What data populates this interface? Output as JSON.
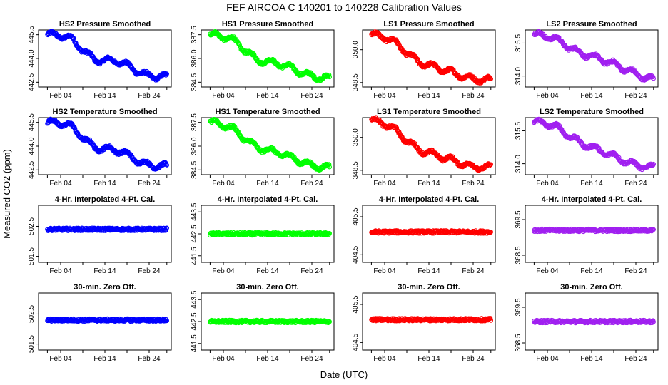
{
  "figure": {
    "title": "FEF   AIRCOA C   140201 to 140228   Calibration Values",
    "xlabel": "Date (UTC)",
    "ylabel": "Measured CO2 (ppm)"
  },
  "colors": {
    "HS2": "#0000ff",
    "HS1": "#00ff00",
    "LS1": "#ff0000",
    "LS2": "#a020f0"
  },
  "chart_data": [
    {
      "type": "scatter",
      "title": "HS2 Pressure Smoothed",
      "tank": "HS2",
      "yticks": [
        "442.5",
        "444.0",
        "445.5"
      ],
      "ylim": [
        442.2,
        445.8
      ],
      "xlim": [
        "2014-01-30",
        "2014-03-01"
      ],
      "xticks": [
        "Feb 04",
        "Feb 14",
        "Feb 24"
      ],
      "x_range": [
        "2014-02-01",
        "2014-02-28"
      ],
      "trend": [
        [
          0,
          445.5
        ],
        [
          0.2,
          445.2
        ],
        [
          0.4,
          444.0
        ],
        [
          0.6,
          443.7
        ],
        [
          0.8,
          443.1
        ],
        [
          1,
          442.8
        ]
      ]
    },
    {
      "type": "scatter",
      "title": "HS1 Pressure Smoothed",
      "tank": "HS1",
      "yticks": [
        "384.5",
        "386.0",
        "387.5"
      ],
      "ylim": [
        384.2,
        387.8
      ],
      "xlim": [
        "2014-01-30",
        "2014-03-01"
      ],
      "xticks": [
        "Feb 04",
        "Feb 14",
        "Feb 24"
      ],
      "x_range": [
        "2014-02-01",
        "2014-02-28"
      ],
      "trend": [
        [
          0,
          387.5
        ],
        [
          0.2,
          387.1
        ],
        [
          0.4,
          386.0
        ],
        [
          0.6,
          385.5
        ],
        [
          0.8,
          385.1
        ],
        [
          1,
          384.7
        ]
      ]
    },
    {
      "type": "scatter",
      "title": "LS1 Pressure Smoothed",
      "tank": "LS1",
      "yticks": [
        "348.5",
        "350.0"
      ],
      "ylim": [
        348.3,
        350.9
      ],
      "xlim": [
        "2014-01-30",
        "2014-03-01"
      ],
      "xticks": [
        "Feb 04",
        "Feb 14",
        "Feb 24"
      ],
      "x_range": [
        "2014-02-01",
        "2014-02-28"
      ],
      "trend": [
        [
          0,
          350.7
        ],
        [
          0.2,
          350.3
        ],
        [
          0.4,
          349.5
        ],
        [
          0.6,
          349.0
        ],
        [
          0.8,
          348.8
        ],
        [
          1,
          348.6
        ]
      ]
    },
    {
      "type": "scatter",
      "title": "LS2 Pressure Smoothed",
      "tank": "LS2",
      "yticks": [
        "314.0",
        "315.5"
      ],
      "ylim": [
        313.5,
        316.1
      ],
      "xlim": [
        "2014-01-30",
        "2014-03-01"
      ],
      "xticks": [
        "Feb 04",
        "Feb 14",
        "Feb 24"
      ],
      "x_range": [
        "2014-02-01",
        "2014-02-28"
      ],
      "trend": [
        [
          0,
          315.9
        ],
        [
          0.2,
          315.6
        ],
        [
          0.4,
          315.1
        ],
        [
          0.6,
          314.6
        ],
        [
          0.8,
          314.3
        ],
        [
          1,
          313.8
        ]
      ]
    },
    {
      "type": "scatter",
      "title": "HS2 Temperature Smoothed",
      "tank": "HS2",
      "yticks": [
        "442.5",
        "444.0",
        "445.5"
      ],
      "ylim": [
        442.2,
        445.8
      ],
      "xlim": [
        "2014-01-30",
        "2014-03-01"
      ],
      "xticks": [
        "Feb 04",
        "Feb 14",
        "Feb 24"
      ],
      "x_range": [
        "2014-02-01",
        "2014-02-28"
      ],
      "trend": [
        [
          0,
          445.5
        ],
        [
          0.2,
          445.2
        ],
        [
          0.4,
          444.0
        ],
        [
          0.6,
          443.6
        ],
        [
          0.8,
          443.0
        ],
        [
          1,
          442.7
        ]
      ]
    },
    {
      "type": "scatter",
      "title": "HS1 Temperature Smoothed",
      "tank": "HS1",
      "yticks": [
        "384.5",
        "386.0",
        "387.5"
      ],
      "ylim": [
        384.2,
        387.8
      ],
      "xlim": [
        "2014-01-30",
        "2014-03-01"
      ],
      "xticks": [
        "Feb 04",
        "Feb 14",
        "Feb 24"
      ],
      "x_range": [
        "2014-02-01",
        "2014-02-28"
      ],
      "trend": [
        [
          0,
          387.5
        ],
        [
          0.2,
          387.0
        ],
        [
          0.4,
          386.0
        ],
        [
          0.6,
          385.4
        ],
        [
          0.8,
          385.0
        ],
        [
          1,
          384.6
        ]
      ]
    },
    {
      "type": "scatter",
      "title": "LS1 Temperature Smoothed",
      "tank": "LS1",
      "yticks": [
        "348.5",
        "350.0"
      ],
      "ylim": [
        348.3,
        350.9
      ],
      "xlim": [
        "2014-01-30",
        "2014-03-01"
      ],
      "xticks": [
        "Feb 04",
        "Feb 14",
        "Feb 24"
      ],
      "x_range": [
        "2014-02-01",
        "2014-02-28"
      ],
      "trend": [
        [
          0,
          350.8
        ],
        [
          0.2,
          350.3
        ],
        [
          0.4,
          349.5
        ],
        [
          0.6,
          349.0
        ],
        [
          0.8,
          348.8
        ],
        [
          1,
          348.6
        ]
      ]
    },
    {
      "type": "scatter",
      "title": "LS2 Temperature Smoothed",
      "tank": "LS2",
      "yticks": [
        "314.0",
        "315.5"
      ],
      "ylim": [
        313.5,
        316.1
      ],
      "xlim": [
        "2014-01-30",
        "2014-03-01"
      ],
      "xticks": [
        "Feb 04",
        "Feb 14",
        "Feb 24"
      ],
      "x_range": [
        "2014-02-01",
        "2014-02-28"
      ],
      "trend": [
        [
          0,
          315.9
        ],
        [
          0.2,
          315.6
        ],
        [
          0.4,
          315.0
        ],
        [
          0.6,
          314.4
        ],
        [
          0.8,
          314.1
        ],
        [
          1,
          313.8
        ]
      ]
    },
    {
      "type": "scatter",
      "title": "4-Hr. Interpolated 4-Pt. Cal.",
      "tank": "HS2",
      "yticks": [
        "501.5",
        "502.5"
      ],
      "ylim": [
        501.3,
        503.2
      ],
      "xlim": [
        "2014-01-30",
        "2014-03-01"
      ],
      "xticks": [
        "Feb 04",
        "Feb 14",
        "Feb 24"
      ],
      "x_range": [
        "2014-02-01",
        "2014-02-28"
      ],
      "trend": [
        [
          0,
          502.4
        ],
        [
          1,
          502.4
        ]
      ]
    },
    {
      "type": "scatter",
      "title": "4-Hr. Interpolated 4-Pt. Cal.",
      "tank": "HS1",
      "yticks": [
        "441.5",
        "442.5",
        "443.5"
      ],
      "ylim": [
        441.2,
        443.8
      ],
      "xlim": [
        "2014-01-30",
        "2014-03-01"
      ],
      "xticks": [
        "Feb 04",
        "Feb 14",
        "Feb 24"
      ],
      "x_range": [
        "2014-02-01",
        "2014-02-28"
      ],
      "trend": [
        [
          0,
          442.5
        ],
        [
          1,
          442.5
        ]
      ]
    },
    {
      "type": "scatter",
      "title": "4-Hr. Interpolated 4-Pt. Cal.",
      "tank": "LS1",
      "yticks": [
        "404.5",
        "405.5"
      ],
      "ylim": [
        404.3,
        405.8
      ],
      "xlim": [
        "2014-01-30",
        "2014-03-01"
      ],
      "xticks": [
        "Feb 04",
        "Feb 14",
        "Feb 24"
      ],
      "x_range": [
        "2014-02-01",
        "2014-02-28"
      ],
      "trend": [
        [
          0,
          405.1
        ],
        [
          1,
          405.1
        ]
      ]
    },
    {
      "type": "scatter",
      "title": "4-Hr. Interpolated 4-Pt. Cal.",
      "tank": "LS2",
      "yticks": [
        "368.5",
        "369.5"
      ],
      "ylim": [
        368.3,
        369.9
      ],
      "xlim": [
        "2014-01-30",
        "2014-03-01"
      ],
      "xticks": [
        "Feb 04",
        "Feb 14",
        "Feb 24"
      ],
      "x_range": [
        "2014-02-01",
        "2014-02-28"
      ],
      "trend": [
        [
          0,
          369.2
        ],
        [
          1,
          369.2
        ]
      ]
    },
    {
      "type": "scatter",
      "title": "30-min. Zero Off.",
      "tank": "HS2",
      "yticks": [
        "501.5",
        "502.5"
      ],
      "ylim": [
        501.3,
        503.2
      ],
      "xlim": [
        "2014-01-30",
        "2014-03-01"
      ],
      "xticks": [
        "Feb 04",
        "Feb 14",
        "Feb 24"
      ],
      "x_range": [
        "2014-02-01",
        "2014-02-28"
      ],
      "trend": [
        [
          0,
          502.3
        ],
        [
          1,
          502.3
        ]
      ]
    },
    {
      "type": "scatter",
      "title": "30-min. Zero Off.",
      "tank": "HS1",
      "yticks": [
        "441.5",
        "442.5",
        "443.5"
      ],
      "ylim": [
        441.2,
        443.8
      ],
      "xlim": [
        "2014-01-30",
        "2014-03-01"
      ],
      "xticks": [
        "Feb 04",
        "Feb 14",
        "Feb 24"
      ],
      "x_range": [
        "2014-02-01",
        "2014-02-28"
      ],
      "trend": [
        [
          0,
          442.5
        ],
        [
          1,
          442.5
        ]
      ]
    },
    {
      "type": "scatter",
      "title": "30-min. Zero Off.",
      "tank": "LS1",
      "yticks": [
        "404.5",
        "405.5"
      ],
      "ylim": [
        404.3,
        405.8
      ],
      "xlim": [
        "2014-01-30",
        "2014-03-01"
      ],
      "xticks": [
        "Feb 04",
        "Feb 14",
        "Feb 24"
      ],
      "x_range": [
        "2014-02-01",
        "2014-02-28"
      ],
      "trend": [
        [
          0,
          405.1
        ],
        [
          1,
          405.1
        ]
      ]
    },
    {
      "type": "scatter",
      "title": "30-min. Zero Off.",
      "tank": "LS2",
      "yticks": [
        "368.5",
        "369.5"
      ],
      "ylim": [
        368.3,
        369.9
      ],
      "xlim": [
        "2014-01-30",
        "2014-03-01"
      ],
      "xticks": [
        "Feb 04",
        "Feb 14",
        "Feb 24"
      ],
      "x_range": [
        "2014-02-01",
        "2014-02-28"
      ],
      "trend": [
        [
          0,
          369.1
        ],
        [
          1,
          369.1
        ]
      ]
    }
  ]
}
